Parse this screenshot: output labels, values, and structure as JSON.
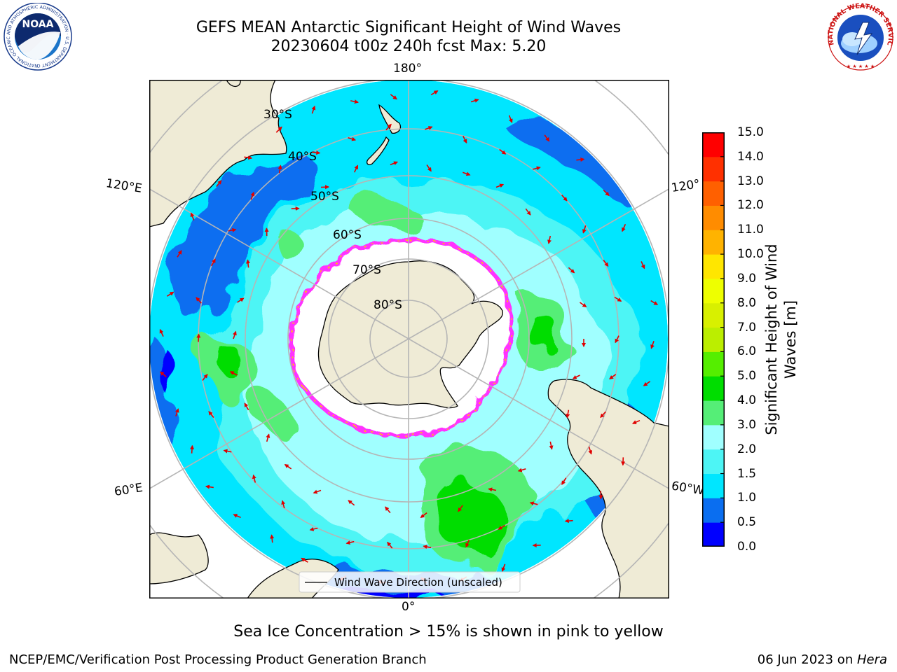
{
  "title": {
    "line1": "GEFS MEAN Antarctic Significant Height of Wind Waves",
    "line2": "20230604 t00z 240h fcst   Max: 5.20"
  },
  "map": {
    "projection": "south-polar-stereographic",
    "lat_labels": [
      "30°S",
      "40°S",
      "50°S",
      "60°S",
      "70°S",
      "80°S"
    ],
    "lon_labels": {
      "top": "180°",
      "bottom": "0°",
      "upper_left": "120°E",
      "lower_left": "60°E",
      "upper_right": "120°",
      "lower_right": "60°W"
    },
    "legend_label": "Wind Wave Direction (unscaled)",
    "arrow_color": "#e00000",
    "land_color": "#efebd6",
    "ice_edge_color": "#ff33ff"
  },
  "colorbar": {
    "label": "Significant Height of Wind Waves [m]",
    "ticks": [
      "0.0",
      "0.5",
      "1.0",
      "1.5",
      "2.0",
      "3.0",
      "4.0",
      "5.0",
      "6.0",
      "7.0",
      "8.0",
      "9.0",
      "10.0",
      "11.0",
      "12.0",
      "13.0",
      "14.0",
      "15.0"
    ],
    "colors": [
      "#0000ff",
      "#0a6ef0",
      "#00e6ff",
      "#4df5f5",
      "#a0ffff",
      "#55ee77",
      "#00dd00",
      "#55ee00",
      "#bbee00",
      "#d8f000",
      "#eeff00",
      "#ffe600",
      "#ffb300",
      "#ff8c00",
      "#ff6000",
      "#ff3000",
      "#ff0000"
    ]
  },
  "footer": {
    "note": "Sea Ice Concentration > 15% is shown in pink to yellow",
    "credit": "NCEP/EMC/Verification Post Processing Product Generation Branch",
    "date": "06 Jun 2023 on ",
    "host": "Hera"
  },
  "logos": {
    "noaa": "NOAA",
    "noaa_ring": "NATIONAL OCEANIC AND ATMOSPHERIC ADMINISTRATION · U.S. DEPARTMENT OF COMMERCE",
    "nws_ring": "NATIONAL WEATHER SERVICE"
  }
}
